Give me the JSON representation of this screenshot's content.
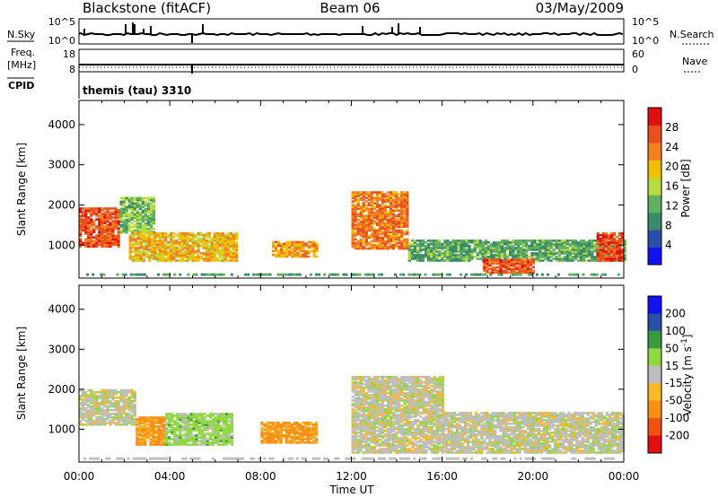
{
  "header": {
    "radar": "Blackstone (fitACF)",
    "beam": "Beam 06",
    "date": "03/May/2009"
  },
  "noise_panel": {
    "left_label": "N.Sky",
    "right_label": "N.Search",
    "left_top_tick": "10^5",
    "left_bottom_tick": "10^0",
    "right_top_tick": "10^5",
    "right_bottom_tick": "10^0"
  },
  "freq_panel": {
    "left_label_line1": "Freq.",
    "left_label_line2": "[MHz]",
    "left_top_tick": "18",
    "left_bottom_tick": "8",
    "right_label": "Nave",
    "right_top_tick": "60",
    "right_bottom_tick": "0"
  },
  "cpid_panel": {
    "label": "CPID",
    "mode": "themis (tau) 3310"
  },
  "colors": {
    "power_scale": [
      "#1010f0",
      "#2a4fa8",
      "#3b8a6a",
      "#60b060",
      "#b8dc40",
      "#f0c000",
      "#f08020",
      "#e85020",
      "#e01010"
    ],
    "velocity_scale": [
      "#e01010",
      "#f05010",
      "#f89018",
      "#f8b828",
      "#c8c8c0",
      "#90d840",
      "#3a9a40",
      "#2a4fa8",
      "#1010f0"
    ],
    "ground_scatter": "#bebebe"
  },
  "chart_data": [
    {
      "type": "heatmap",
      "title": "",
      "panel": "power",
      "xlabel": "Time UT",
      "ylabel": "Slant Range [km]",
      "xlim": [
        "00:00",
        "00:00"
      ],
      "x_tick_labels": [
        "00:00",
        "04:00",
        "08:00",
        "12:00",
        "16:00",
        "20:00",
        "00:00"
      ],
      "ylim": [
        180,
        4600
      ],
      "y_ticks": [
        "1000",
        "2000",
        "3000",
        "4000"
      ],
      "colorbar": {
        "label": "Power [dB]",
        "ticks": [
          "4",
          "8",
          "12",
          "16",
          "20",
          "24",
          "28"
        ]
      },
      "regions": [
        {
          "t_start": 0.0,
          "t_end": 1.8,
          "r_low": 950,
          "r_high": 1900,
          "value_db": 26
        },
        {
          "t_start": 1.8,
          "t_end": 3.3,
          "r_low": 1300,
          "r_high": 2200,
          "value_db": 14
        },
        {
          "t_start": 2.2,
          "t_end": 7.0,
          "r_low": 600,
          "r_high": 1300,
          "value_db": 20
        },
        {
          "t_start": 8.5,
          "t_end": 10.5,
          "r_low": 700,
          "r_high": 1100,
          "value_db": 22
        },
        {
          "t_start": 12.0,
          "t_end": 14.5,
          "r_low": 900,
          "r_high": 2300,
          "value_db": 24
        },
        {
          "t_start": 14.5,
          "t_end": 24.0,
          "r_low": 600,
          "r_high": 1100,
          "value_db": 12
        },
        {
          "t_start": 17.8,
          "t_end": 20.0,
          "r_low": 300,
          "r_high": 650,
          "value_db": 26
        },
        {
          "t_start": 22.8,
          "t_end": 24.0,
          "r_low": 600,
          "r_high": 1300,
          "value_db": 27
        }
      ]
    },
    {
      "type": "heatmap",
      "title": "",
      "panel": "velocity",
      "xlabel": "Time UT",
      "ylabel": "Slant Range [km]",
      "xlim": [
        "00:00",
        "00:00"
      ],
      "x_tick_labels": [
        "00:00",
        "04:00",
        "08:00",
        "12:00",
        "16:00",
        "20:00",
        "00:00"
      ],
      "ylim": [
        180,
        4600
      ],
      "y_ticks": [
        "1000",
        "2000",
        "3000",
        "4000"
      ],
      "colorbar": {
        "label": "Velocity [m s^-1]",
        "ticks": [
          "200",
          "100",
          "50",
          "15",
          "-15",
          "-50",
          "-100",
          "-200"
        ]
      },
      "regions": [
        {
          "t_start": 0.0,
          "t_end": 2.5,
          "r_low": 1100,
          "r_high": 2000,
          "velocity": 0
        },
        {
          "t_start": 2.5,
          "t_end": 3.8,
          "r_low": 600,
          "r_high": 1300,
          "velocity": -60
        },
        {
          "t_start": 3.8,
          "t_end": 6.8,
          "r_low": 600,
          "r_high": 1400,
          "velocity": 30
        },
        {
          "t_start": 8.0,
          "t_end": 10.5,
          "r_low": 650,
          "r_high": 1150,
          "velocity": -60
        },
        {
          "t_start": 12.0,
          "t_end": 16.0,
          "r_low": 400,
          "r_high": 2300,
          "velocity": 0
        },
        {
          "t_start": 16.0,
          "t_end": 24.0,
          "r_low": 400,
          "r_high": 1400,
          "velocity": 0
        }
      ]
    }
  ]
}
